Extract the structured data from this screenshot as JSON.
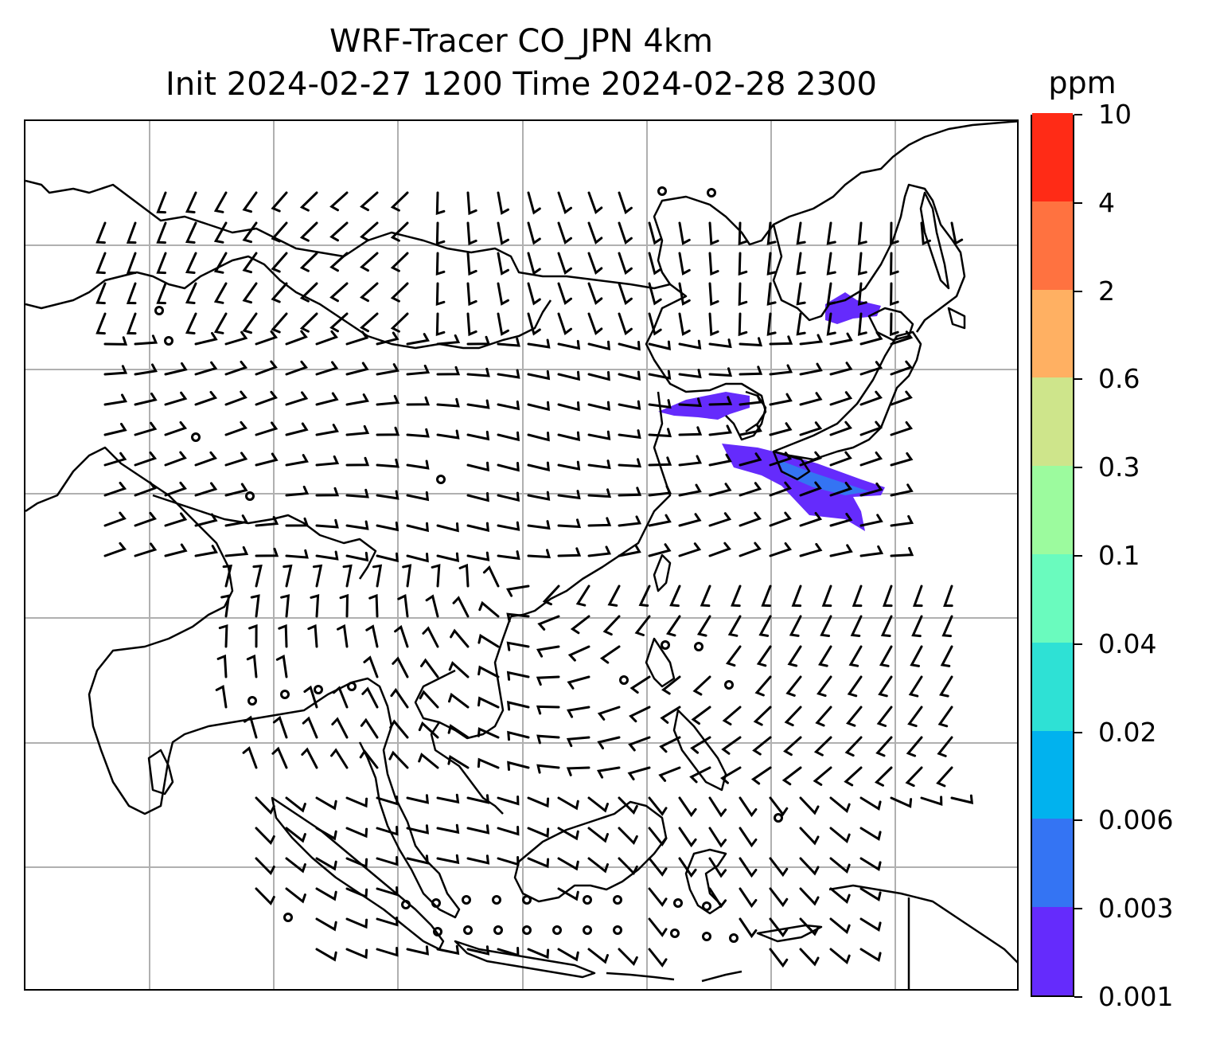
{
  "title": {
    "line1": "WRF-Tracer CO_JPN 4km",
    "line2": "Init 2024-02-27 1200 Time 2024-02-28 2300"
  },
  "colorbar": {
    "unit": "ppm",
    "levels": [
      "0.001",
      "0.003",
      "0.006",
      "0.02",
      "0.04",
      "0.1",
      "0.3",
      "0.6",
      "2",
      "4",
      "10"
    ],
    "colors": [
      "#652bfc",
      "#3474f3",
      "#01b2ee",
      "#2ee1d5",
      "#6afbbe",
      "#9cfb9e",
      "#cee58b",
      "#ffb062",
      "#ff7240",
      "#ff2b16"
    ]
  },
  "map": {
    "gridlines": true,
    "grid_color": "#b0b0b0",
    "coastline_color": "#000000",
    "tracer_plumes": [
      {
        "region": "northern Japan",
        "level": "0.001-0.003"
      },
      {
        "region": "Korean peninsula",
        "level": "0.001-0.003"
      },
      {
        "region": "central Japan",
        "level": "0.003-0.006"
      }
    ],
    "wind_barbs": true
  }
}
